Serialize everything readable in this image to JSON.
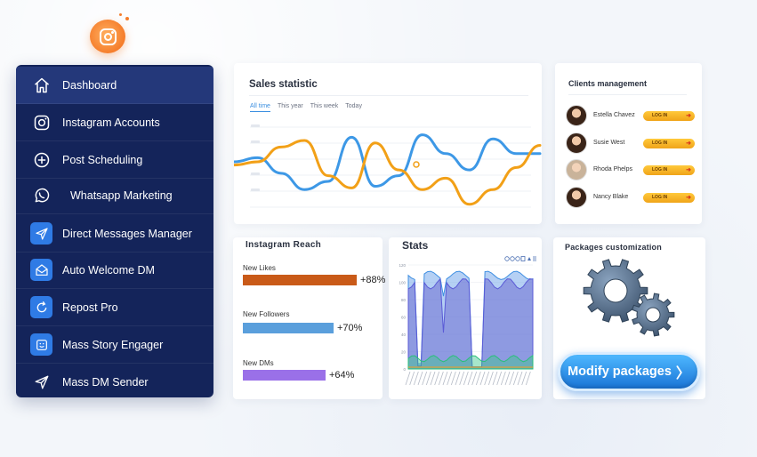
{
  "sidebar": {
    "items": [
      {
        "label": "Dashboard",
        "icon": "home-icon",
        "active": true
      },
      {
        "label": "Instagram Accounts",
        "icon": "instagram-icon"
      },
      {
        "label": "Post Scheduling",
        "icon": "plus-circle-icon"
      },
      {
        "label": "Whatsapp Marketing",
        "icon": "whatsapp-icon"
      },
      {
        "label": "Direct Messages Manager",
        "icon": "send-icon"
      },
      {
        "label": "Auto Welcome DM",
        "icon": "envelope-icon"
      },
      {
        "label": "Repost Pro",
        "icon": "refresh-icon"
      },
      {
        "label": "Mass Story Engager",
        "icon": "smile-icon"
      },
      {
        "label": "Mass DM Sender",
        "icon": "paper-plane-icon"
      }
    ]
  },
  "sales": {
    "title": "Sales statistic",
    "tabs": [
      "All time",
      "This year",
      "This week",
      "Today"
    ],
    "active_tab": "All time",
    "chart_data": {
      "type": "line",
      "series": [
        {
          "color": "#3d98e6",
          "values": [
            0.62,
            0.67,
            0.48,
            0.28,
            0.38,
            0.92,
            0.32,
            0.45,
            0.95,
            0.72,
            0.52,
            0.9,
            0.72,
            0.72
          ]
        },
        {
          "color": "#f2a017",
          "values": [
            0.58,
            0.62,
            0.8,
            0.88,
            0.45,
            0.3,
            0.85,
            0.52,
            0.28,
            0.42,
            0.1,
            0.28,
            0.55,
            0.82
          ]
        }
      ]
    }
  },
  "clients": {
    "title": "Clients management",
    "button_label": "LOG IN",
    "list": [
      {
        "name": "Estella Chavez"
      },
      {
        "name": "Susie West"
      },
      {
        "name": "Rhoda Phelps"
      },
      {
        "name": "Nancy Blake"
      }
    ]
  },
  "reach": {
    "title": "Instagram Reach",
    "rows": [
      {
        "label": "New Likes",
        "value": "+88%",
        "pct": 0.88,
        "color": "#c95a18"
      },
      {
        "label": "New Followers",
        "value": "+70%",
        "pct": 0.7,
        "color": "#5a9fdc"
      },
      {
        "label": "New DMs",
        "value": "+64%",
        "pct": 0.64,
        "color": "#9a70e8"
      }
    ]
  },
  "stats": {
    "title": "Stats",
    "y_ticks": [
      "120",
      "100",
      "80",
      "60",
      "40",
      "20",
      "0"
    ]
  },
  "packages": {
    "title": "Packages customization",
    "button_label": "Modify packages"
  }
}
